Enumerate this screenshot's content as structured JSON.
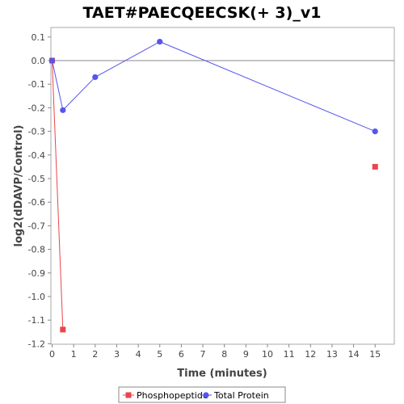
{
  "chart_data": {
    "type": "line",
    "title": "TAET#PAECQEECSK(+ 3)_v1",
    "xlabel": "Time (minutes)",
    "ylabel": "log2(dDAVP/Control)",
    "xlim": [
      0,
      16
    ],
    "ylim": [
      -1.22,
      0.15
    ],
    "x_ticks": [
      0,
      1,
      2,
      3,
      4,
      5,
      6,
      7,
      8,
      9,
      10,
      11,
      12,
      13,
      14,
      15
    ],
    "y_ticks": [
      0.1,
      0.0,
      -0.1,
      -0.2,
      -0.3,
      -0.4,
      -0.5,
      -0.6,
      -0.7,
      -0.8,
      -0.9,
      -1.0,
      -1.1,
      -1.2
    ],
    "y_tick_labels": [
      "0.1",
      "0.0",
      "-0.1",
      "-0.2",
      "-0.3",
      "-0.4",
      "-0.5",
      "-0.6",
      "-0.7",
      "-0.8",
      "-0.9",
      "-1.0",
      "-1.1",
      "-1.2"
    ],
    "zero_line": true,
    "grid": false,
    "legend_position": "bottom",
    "series": [
      {
        "name": "Phosphopeptide",
        "color": "#e8474a",
        "marker": "square",
        "line_segments": [
          [
            0,
            1
          ]
        ],
        "points": [
          [
            0,
            0.0
          ],
          [
            0.5,
            -1.14
          ],
          [
            15,
            -0.45
          ]
        ]
      },
      {
        "name": "Total Protein",
        "color": "#5555ee",
        "marker": "circle",
        "line_segments": [
          [
            0,
            1
          ],
          [
            1,
            2
          ],
          [
            2,
            3
          ],
          [
            3,
            4
          ]
        ],
        "points": [
          [
            0,
            0.0
          ],
          [
            0.5,
            -0.21
          ],
          [
            2,
            -0.07
          ],
          [
            5,
            0.08
          ],
          [
            15,
            -0.3
          ]
        ]
      }
    ]
  }
}
